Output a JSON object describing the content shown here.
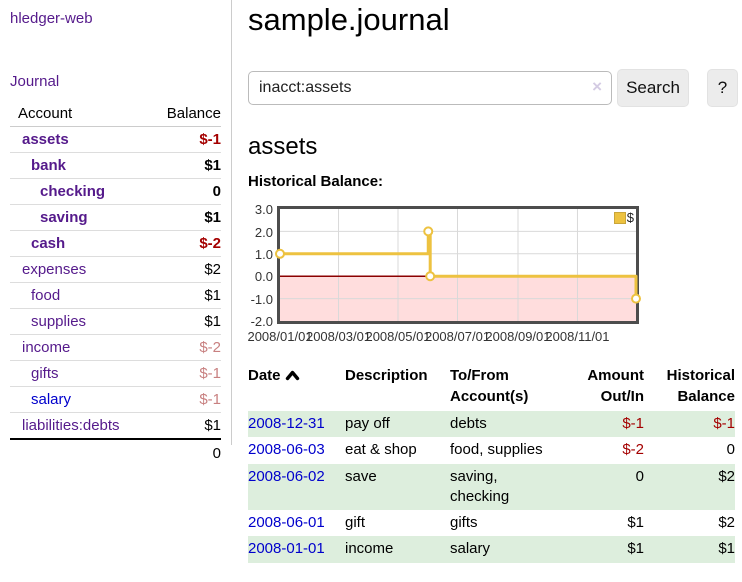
{
  "colors": {
    "link_purple": "#551a8b",
    "link_blue": "#0000cc",
    "negative_strong": "#a40000",
    "negative_pale": "#c88080",
    "row_highlight_green": "#ddeedd",
    "chart_line_gold": "#edc240",
    "chart_negative_fill": "#ffdddd",
    "chart_zero_line": "#8b0000"
  },
  "sidebar": {
    "app_title": "hledger-web",
    "journal_link": "Journal",
    "accounts_header": {
      "account": "Account",
      "balance": "Balance"
    },
    "accounts": [
      {
        "label": "assets",
        "balance": "$-1",
        "indent": 1,
        "strong": true,
        "neg": "strong"
      },
      {
        "label": "bank",
        "balance": "$1",
        "indent": 2,
        "strong": true
      },
      {
        "label": "checking",
        "balance": "0",
        "indent": 3,
        "strong": true
      },
      {
        "label": "saving",
        "balance": "$1",
        "indent": 3,
        "strong": true
      },
      {
        "label": "cash",
        "balance": "$-2",
        "indent": 2,
        "strong": true,
        "neg": "strong"
      },
      {
        "label": "expenses",
        "balance": "$2",
        "indent": 1
      },
      {
        "label": "food",
        "balance": "$1",
        "indent": 2
      },
      {
        "label": "supplies",
        "balance": "$1",
        "indent": 2
      },
      {
        "label": "income",
        "balance": "$-2",
        "indent": 1,
        "neg": "pale"
      },
      {
        "label": "gifts",
        "balance": "$-1",
        "indent": 2,
        "neg": "pale"
      },
      {
        "label": "salary",
        "balance": "$-1",
        "indent": 2,
        "neg": "pale",
        "unvisited": true
      },
      {
        "label": "liabilities:debts",
        "balance": "$1",
        "indent": 1
      }
    ],
    "total": "0"
  },
  "main": {
    "title": "sample.journal",
    "search": {
      "value": "inacct:assets",
      "clear_icon": "×",
      "button_label": "Search",
      "help_label": "?"
    },
    "account_heading": "assets",
    "chart_label": "Historical Balance:"
  },
  "chart_data": {
    "type": "line",
    "title": "Historical Balance",
    "step": true,
    "series": [
      {
        "name": "$",
        "color": "#edc240",
        "points": [
          [
            "2008-01-01",
            1
          ],
          [
            "2008-06-01",
            2
          ],
          [
            "2008-06-03",
            0
          ],
          [
            "2008-12-31",
            -1
          ]
        ]
      }
    ],
    "x_range": [
      "2008-01-01",
      "2008-12-31"
    ],
    "x_ticks": [
      {
        "date": "2008-01-01",
        "label": "2008/01/01"
      },
      {
        "date": "2008-03-01",
        "label": "2008/03/01"
      },
      {
        "date": "2008-05-01",
        "label": "2008/05/01"
      },
      {
        "date": "2008-07-01",
        "label": "2008/07/01"
      },
      {
        "date": "2008-09-01",
        "label": "2008/09/01"
      },
      {
        "date": "2008-11-01",
        "label": "2008/11/01"
      }
    ],
    "y_ticks": [
      3.0,
      2.0,
      1.0,
      0.0,
      -1.0,
      -2.0
    ],
    "ylim": [
      -2,
      3
    ],
    "grid": true,
    "legend_position": "top-right",
    "negative_region_fill": "#ffdddd",
    "zero_line_color": "#8b0000"
  },
  "register": {
    "headers": {
      "date": "Date",
      "description": "Description",
      "account": "To/From Account(s)",
      "amount": "Amount Out/In",
      "balance": "Historical Balance"
    },
    "sort_icon": "chevron-up",
    "rows": [
      {
        "date": "2008-12-31",
        "description": "pay off",
        "account": "debts",
        "amount": "$-1",
        "balance": "$-1"
      },
      {
        "date": "2008-06-03",
        "description": "eat & shop",
        "account": "food, supplies",
        "amount": "$-2",
        "balance": "0"
      },
      {
        "date": "2008-06-02",
        "description": "save",
        "account": "saving, checking",
        "amount": "0",
        "balance": "$2"
      },
      {
        "date": "2008-06-01",
        "description": "gift",
        "account": "gifts",
        "amount": "$1",
        "balance": "$2"
      },
      {
        "date": "2008-01-01",
        "description": "income",
        "account": "salary",
        "amount": "$1",
        "balance": "$1"
      }
    ]
  }
}
